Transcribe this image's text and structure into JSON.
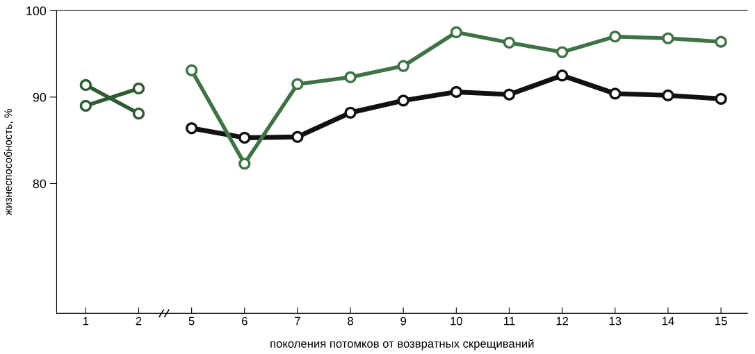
{
  "chart_data": {
    "type": "line",
    "xlabel": "поколения потомков от возвратных скрещиваний",
    "ylabel": "жизнеспособность, %",
    "categories": [
      "1",
      "2",
      "5",
      "6",
      "7",
      "8",
      "9",
      "10",
      "11",
      "12",
      "13",
      "14",
      "15"
    ],
    "series": [
      {
        "color": "#2e5a34",
        "values": [
          91.4,
          88.1,
          null,
          null,
          null,
          null,
          null,
          null,
          null,
          null,
          null,
          null,
          null
        ]
      },
      {
        "color": "#2e5a34",
        "values": [
          89.0,
          91.0,
          null,
          null,
          null,
          null,
          null,
          null,
          null,
          null,
          null,
          null,
          null
        ]
      },
      {
        "color": "#111111",
        "values": [
          null,
          null,
          86.4,
          85.3,
          85.4,
          88.2,
          89.6,
          90.6,
          90.3,
          92.5,
          90.4,
          90.2,
          89.8
        ]
      },
      {
        "color": "#3f7346",
        "values": [
          null,
          null,
          93.1,
          82.3,
          91.5,
          92.3,
          93.6,
          97.5,
          96.3,
          95.2,
          97.0,
          96.8,
          96.4
        ]
      }
    ],
    "ylim": [
      65,
      100
    ],
    "yticks": [
      80,
      90,
      100
    ],
    "grid": false,
    "legend": false,
    "marker": "circle",
    "line_style": "solid"
  }
}
